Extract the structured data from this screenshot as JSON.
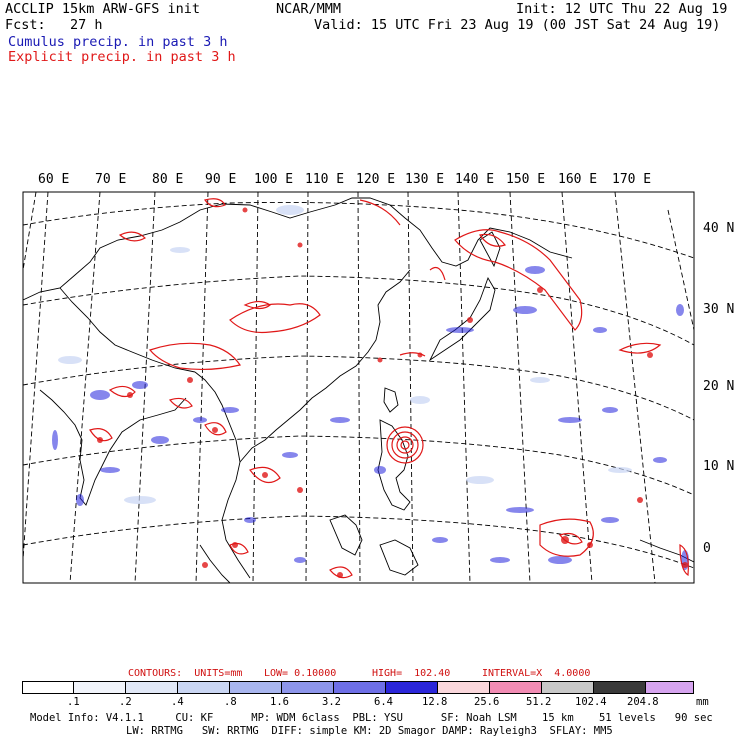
{
  "header": {
    "line1_left": "ACCLIP 15km ARW-GFS init",
    "line1_center": "NCAR/MMM",
    "line1_right": "Init: 12 UTC Thu 22 Aug 19",
    "line2_left": "Fcst:   27 h",
    "line2_right": "Valid: 15 UTC Fri 23 Aug 19 (00 JST Sat 24 Aug 19)",
    "cumulus_label": "Cumulus precip. in past 3 h",
    "explicit_label": "Explicit precip. in past 3 h"
  },
  "map": {
    "lon_labels": [
      "60 E",
      "70 E",
      "80 E",
      "90 E",
      "100 E",
      "110 E",
      "120 E",
      "130 E",
      "140 E",
      "150 E",
      "160 E",
      "170 E"
    ],
    "lat_labels": [
      "40 N",
      "30 N",
      "20 N",
      "10 N",
      "0"
    ],
    "colors": {
      "cumulus": "#2222dd",
      "explicit": "#e01818",
      "land": "#000000",
      "grid": "#000000"
    }
  },
  "contours": {
    "units_label": "CONTOURS:  UNITS=mm",
    "low": "LOW= 0.10000",
    "high": "HIGH=  102.40",
    "interval": "INTERVAL=X  4.0000"
  },
  "colorbar": {
    "ticks": [
      ".1",
      ".2",
      ".4",
      ".8",
      "1.6",
      "3.2",
      "6.4",
      "12.8",
      "25.6",
      "51.2",
      "102.4",
      "204.8"
    ],
    "unit": "mm",
    "colors": [
      "#ffffff",
      "#f1f4fb",
      "#e1e8f7",
      "#cad6f3",
      "#a9b6ef",
      "#8d95ea",
      "#6e6fe6",
      "#2b26d9",
      "#fad7dc",
      "#f28cb4",
      "#c8c8c8",
      "#3a3a3a",
      "#d6a4ef"
    ]
  },
  "footer": {
    "line1": "Model Info: V4.1.1     CU: KF      MP: WDM 6class  PBL: YSU      SF: Noah LSM    15 km    51 levels   90 sec",
    "line2": "LW: RRTMG   SW: RRTMG  DIFF: simple KM: 2D Smagor DAMP: Rayleigh3  SFLAY: MM5"
  }
}
